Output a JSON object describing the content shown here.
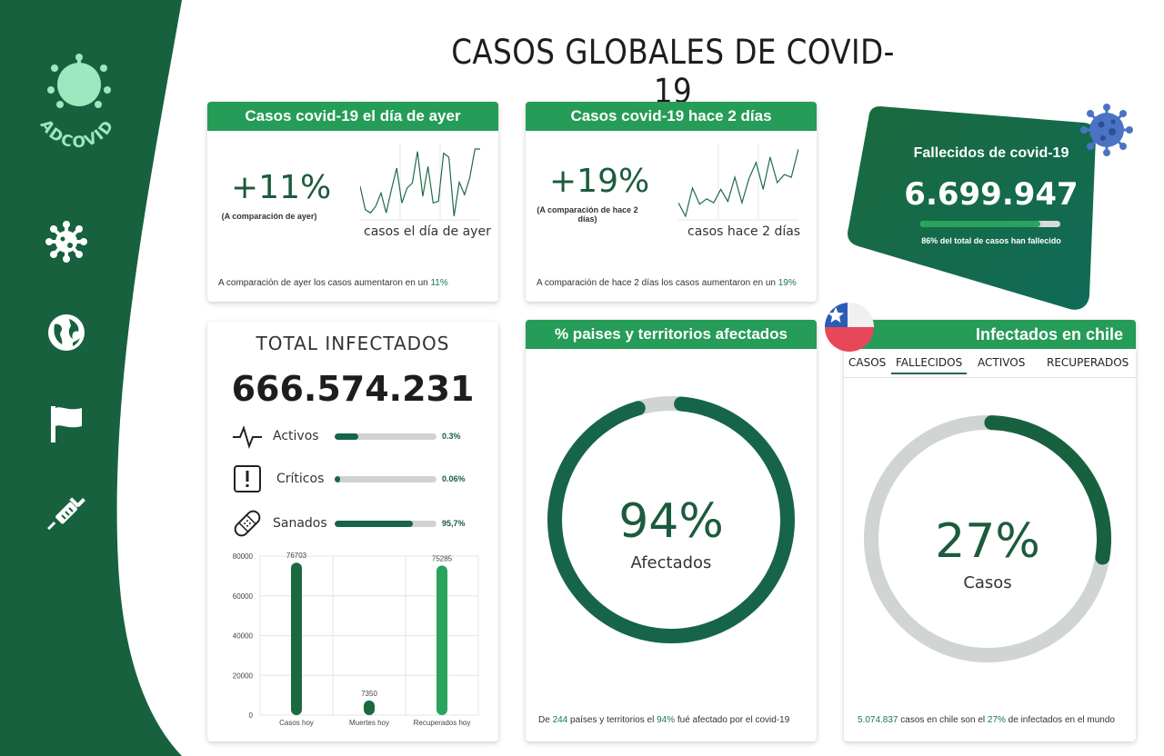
{
  "sidebar": {
    "logo_text": "ADCOVID",
    "items": [
      {
        "icon": "virus-icon"
      },
      {
        "icon": "globe-icon"
      },
      {
        "icon": "flag-icon"
      },
      {
        "icon": "syringe-icon"
      }
    ]
  },
  "page": {
    "title": "CASOS GLOBALES DE COVID-19"
  },
  "colors": {
    "dark_green": "#17613f",
    "accent_green": "#259c57",
    "deep_green": "#16654a",
    "grey": "#cfd3d2"
  },
  "yesterday": {
    "header": "Casos covid-19 el día de ayer",
    "percent": "+11%",
    "subtitle": "(A comparación de ayer)",
    "spark_label": "casos el día de ayer",
    "footer_prefix": "A comparación de ayer los casos aumentaron en un ",
    "footer_value": "11%",
    "spark": [
      40,
      12,
      8,
      16,
      32,
      8,
      36,
      62,
      20,
      38,
      44,
      82,
      28,
      64,
      20,
      22,
      80,
      75,
      4,
      45,
      30,
      50,
      85,
      85
    ]
  },
  "two_days": {
    "header": "Casos covid-19 hace 2 días",
    "percent": "+19%",
    "subtitle": "(A comparación de hace 2 días)",
    "spark_label": "casos hace 2 días",
    "footer_prefix": "A comparación de hace 2 días los casos aumentaron en un ",
    "footer_value": "19%",
    "spark": [
      20,
      0,
      42,
      18,
      26,
      20,
      40,
      22,
      58,
      20,
      56,
      80,
      40,
      88,
      50,
      62,
      58,
      100
    ]
  },
  "deaths": {
    "title": "Fallecidos  de covid-19",
    "number": "6.699.947",
    "progress": 0.86,
    "subtitle": "86% del total de casos han fallecido"
  },
  "total": {
    "title": "TOTAL INFECTADOS",
    "number": "666.574.231",
    "stats": [
      {
        "label": "Activos",
        "value": "0.3%",
        "fill": 0.23,
        "icon": "activity-icon"
      },
      {
        "label": "Críticos",
        "value": "0.06%",
        "fill": 0.05,
        "icon": "alert-icon"
      },
      {
        "label": "Sanados",
        "value": "95,7%",
        "fill": 0.77,
        "icon": "bandage-icon"
      }
    ]
  },
  "chart_data": {
    "type": "bar",
    "categories": [
      "Casos hoy",
      "Muertes hoy",
      "Recuperados hoy"
    ],
    "values": [
      76703,
      7350,
      75285
    ],
    "data_labels": [
      "76703",
      "7350",
      "75285"
    ],
    "y_ticks": [
      "0",
      "20000",
      "40000",
      "60000",
      "80000"
    ],
    "ylim": [
      0,
      80000
    ],
    "colors": [
      "#1a6a3e",
      "#1a6a3e",
      "#2aa35c"
    ],
    "grid": true
  },
  "countries": {
    "header": "% paises y territorios afectados",
    "percent": "94%",
    "label": "Afectados",
    "fraction": 0.94,
    "footer_1": "De ",
    "footer_2": "244",
    "footer_3": " países y territorios el ",
    "footer_4": "94%",
    "footer_5": " fué afectado por el covid-19"
  },
  "chile": {
    "header": "Infectados en chile",
    "tabs": [
      "CASOS",
      "FALLECIDOS",
      "ACTIVOS",
      "RECUPERADOS"
    ],
    "active_tab": "FALLECIDOS",
    "percent": "27%",
    "label": "Casos",
    "fraction": 0.27,
    "footer_1": "5.074.837",
    "footer_2": " casos  en chile son el ",
    "footer_3": "27%",
    "footer_4": " de infectados en el mundo"
  }
}
